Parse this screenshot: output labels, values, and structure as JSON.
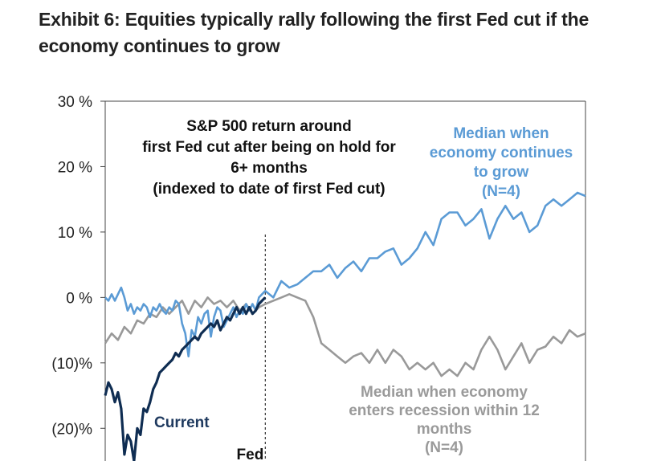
{
  "header": {
    "title_line1": "Exhibit 6: Equities typically rally following the first Fed cut if the",
    "title_line2": "economy continues to grow"
  },
  "colors": {
    "current": "#0f2d52",
    "median_grow": "#5b9bd5",
    "median_recession": "#999999",
    "axis": "#444444"
  },
  "chart_data": {
    "type": "line",
    "title": [
      "S&P 500 return around",
      "first Fed cut after being on hold for",
      "6+ months",
      "(indexed to date of first Fed cut)"
    ],
    "xlabel": "",
    "ylabel": "",
    "ylim": [
      -25,
      30
    ],
    "xlim": [
      -100,
      200
    ],
    "y_ticks": [
      {
        "value": 30,
        "label": "30 %"
      },
      {
        "value": 20,
        "label": "20 %"
      },
      {
        "value": 10,
        "label": "10 %"
      },
      {
        "value": 0,
        "label": "0 %"
      },
      {
        "value": -10,
        "label": "(10)%"
      },
      {
        "value": -20,
        "label": "(20)%"
      }
    ],
    "event_line": {
      "x": 0,
      "label": "Fed"
    },
    "grid": false,
    "series": [
      {
        "key": "median_grow",
        "label_lines": [
          "Median when",
          "economy continues",
          "to grow",
          "(N=4)"
        ],
        "x": [
          -100,
          -98,
          -96,
          -94,
          -92,
          -90,
          -88,
          -86,
          -84,
          -82,
          -80,
          -78,
          -76,
          -74,
          -72,
          -70,
          -68,
          -66,
          -64,
          -62,
          -60,
          -58,
          -56,
          -54,
          -52,
          -50,
          -48,
          -46,
          -44,
          -42,
          -40,
          -38,
          -36,
          -34,
          -32,
          -30,
          -28,
          -26,
          -24,
          -22,
          -20,
          -18,
          -16,
          -14,
          -12,
          -10,
          -8,
          -6,
          -4,
          -2,
          0,
          5,
          10,
          15,
          20,
          25,
          30,
          35,
          40,
          45,
          50,
          55,
          60,
          65,
          70,
          75,
          80,
          85,
          90,
          95,
          100,
          105,
          110,
          115,
          120,
          125,
          130,
          135,
          140,
          145,
          150,
          155,
          160,
          165,
          170,
          175,
          180,
          185,
          190,
          195,
          200
        ],
        "y": [
          0,
          -0.5,
          0.5,
          -0.5,
          0.5,
          1.5,
          0,
          -2,
          -1,
          -2.5,
          -1.5,
          -2,
          -1,
          -1.5,
          -3,
          -1.5,
          -2,
          -1,
          -2,
          -2.5,
          -1.5,
          -2,
          -0.5,
          -1,
          -4,
          -5.5,
          -9,
          -5,
          -6,
          -3,
          -4,
          -2.5,
          -2,
          -6,
          -3,
          -1.5,
          -2,
          -4.5,
          -3.5,
          -2.5,
          -1.5,
          -3,
          -2,
          -2.5,
          -1,
          -2,
          -1,
          -2,
          0,
          0.5,
          1,
          0,
          2.5,
          1.5,
          2,
          3,
          4,
          4,
          5,
          3,
          4.5,
          5.5,
          4,
          6,
          6,
          7,
          7.5,
          5,
          6,
          7.5,
          10,
          8,
          12,
          13,
          13,
          11,
          12,
          13.5,
          9,
          12,
          14,
          12,
          13,
          10,
          11,
          14,
          15,
          14,
          15,
          16,
          15.5
        ]
      },
      {
        "key": "median_recession",
        "label_lines": [
          "Median when economy",
          "enters recession within 12",
          "months",
          "(N=4)"
        ],
        "x": [
          -100,
          -96,
          -92,
          -88,
          -84,
          -80,
          -76,
          -72,
          -68,
          -64,
          -60,
          -56,
          -52,
          -48,
          -44,
          -40,
          -36,
          -32,
          -28,
          -24,
          -20,
          -16,
          -12,
          -8,
          -4,
          0,
          5,
          10,
          15,
          20,
          25,
          30,
          35,
          40,
          45,
          50,
          55,
          60,
          65,
          70,
          75,
          80,
          85,
          90,
          95,
          100,
          105,
          110,
          115,
          120,
          125,
          130,
          135,
          140,
          145,
          150,
          155,
          160,
          165,
          170,
          175,
          180,
          185,
          190,
          195,
          200
        ],
        "y": [
          -7,
          -5.5,
          -6.5,
          -4.5,
          -5.5,
          -3.5,
          -4,
          -2.5,
          -3,
          -1.5,
          -2.5,
          -1.5,
          -0.5,
          -2.5,
          -0.5,
          -1.5,
          0,
          -1,
          -0.5,
          -1.5,
          -0.5,
          -2,
          -1,
          -2.5,
          -1.5,
          -1,
          -0.5,
          0,
          0.5,
          0,
          -0.5,
          -3,
          -7,
          -8,
          -9,
          -10,
          -9,
          -8.5,
          -10,
          -8,
          -10,
          -8,
          -9,
          -11,
          -10,
          -11,
          -10,
          -12,
          -11,
          -12,
          -10,
          -11,
          -8,
          -6,
          -8,
          -11,
          -9,
          -7,
          -10,
          -8,
          -7.5,
          -6,
          -7,
          -5,
          -6,
          -5.5
        ]
      },
      {
        "key": "current",
        "label_lines": [
          "Current"
        ],
        "x": [
          -100,
          -98,
          -96,
          -94,
          -92,
          -90,
          -88,
          -86,
          -84,
          -82,
          -80,
          -78,
          -76,
          -74,
          -72,
          -70,
          -68,
          -66,
          -64,
          -62,
          -60,
          -58,
          -56,
          -54,
          -52,
          -50,
          -48,
          -46,
          -44,
          -42,
          -40,
          -38,
          -36,
          -34,
          -32,
          -30,
          -28,
          -26,
          -24,
          -22,
          -20,
          -18,
          -16,
          -14,
          -12,
          -10,
          -8,
          -6,
          -4,
          -2,
          0
        ],
        "y": [
          -15,
          -13,
          -14,
          -16,
          -14.5,
          -17,
          -24,
          -21,
          -22,
          -25,
          -20,
          -21,
          -17,
          -17.5,
          -16,
          -14,
          -13,
          -11.5,
          -11,
          -10.5,
          -10,
          -9.5,
          -8.5,
          -9,
          -8,
          -7.5,
          -7,
          -6.5,
          -6,
          -6.5,
          -5.5,
          -5,
          -4.5,
          -4,
          -4.5,
          -3.5,
          -5,
          -4,
          -3,
          -3.5,
          -2.5,
          -1.5,
          -2.5,
          -1.5,
          -2.5,
          -1.5,
          -2.5,
          -2,
          -1,
          -0.5,
          0
        ]
      }
    ]
  }
}
